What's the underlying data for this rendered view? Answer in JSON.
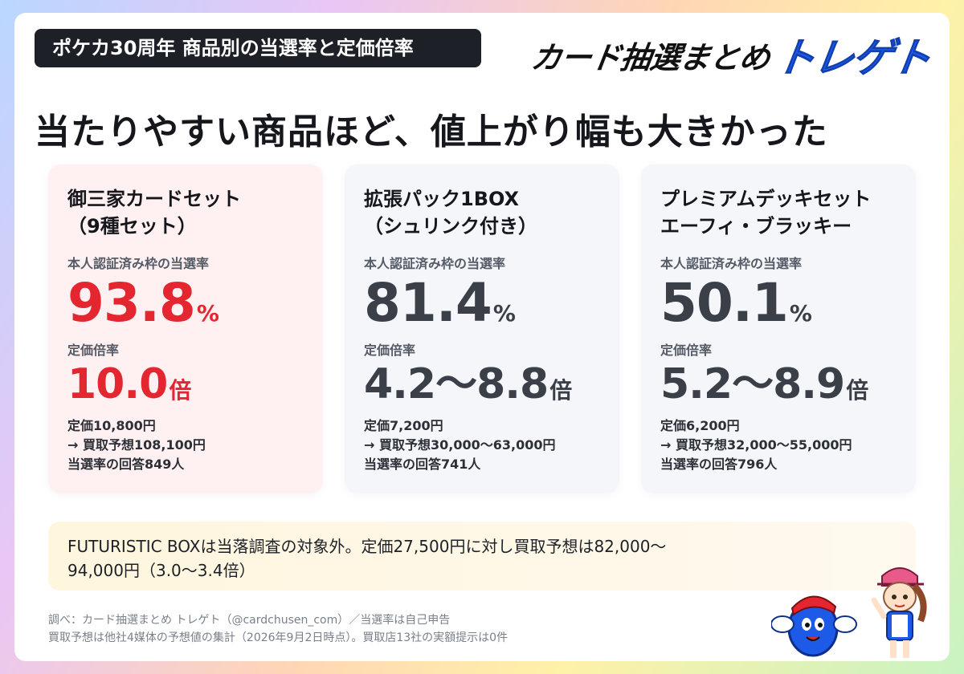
{
  "header": {
    "tag": "ポケカ30周年 商品別の当選率と定価倍率",
    "logo_part1": "カード抽選まとめ",
    "logo_part2": "トレゲト"
  },
  "headline": "当たりやすい商品ほど、値上がり幅も大きかった",
  "cards": [
    {
      "title_line1": "御三家カードセット",
      "title_line2": "（9種セット）",
      "rate_label": "本人認証済み枠の当選率",
      "rate_value": "93.8",
      "rate_unit": "%",
      "mult_label": "定価倍率",
      "mult_value": "10.0",
      "mult_unit": "倍",
      "price": "定価10,800円",
      "buyback": "→ 買取予想108,100円",
      "responses": "当選率の回答849人",
      "accent": "#e3262f"
    },
    {
      "title_line1": "拡張パック1BOX",
      "title_line2": "（シュリンク付き）",
      "rate_label": "本人認証済み枠の当選率",
      "rate_value": "81.4",
      "rate_unit": "%",
      "mult_label": "定価倍率",
      "mult_value": "4.2〜8.8",
      "mult_unit": "倍",
      "price": "定価7,200円",
      "buyback": "→ 買取予想30,000〜63,000円",
      "responses": "当選率の回答741人"
    },
    {
      "title_line1": "プレミアムデッキセット",
      "title_line2": "エーフィ・ブラッキー",
      "rate_label": "本人認証済み枠の当選率",
      "rate_value": "50.1",
      "rate_unit": "%",
      "mult_label": "定価倍率",
      "mult_value": "5.2〜8.9",
      "mult_unit": "倍",
      "price": "定価6,200円",
      "buyback": "→ 買取予想32,000〜55,000円",
      "responses": "当選率の回答796人"
    }
  ],
  "note": {
    "line1": "FUTURISTIC BOXは当落調査の対象外。定価27,500円に対し買取予想は82,000〜",
    "line2": "94,000円（3.0〜3.4倍）"
  },
  "footer": {
    "line1": "調べ：カード抽選まとめ トレゲト（@cardchusen_com）／当選率は自己申告",
    "line2": "買取予想は他社4媒体の予想値の集計（2026年9月2日時点）。買取店13社の実額提示は0件"
  },
  "colors": {
    "accent_red": "#e3262f",
    "logo_blue": "#1e5ae8",
    "tag_bg": "#1d2027"
  }
}
